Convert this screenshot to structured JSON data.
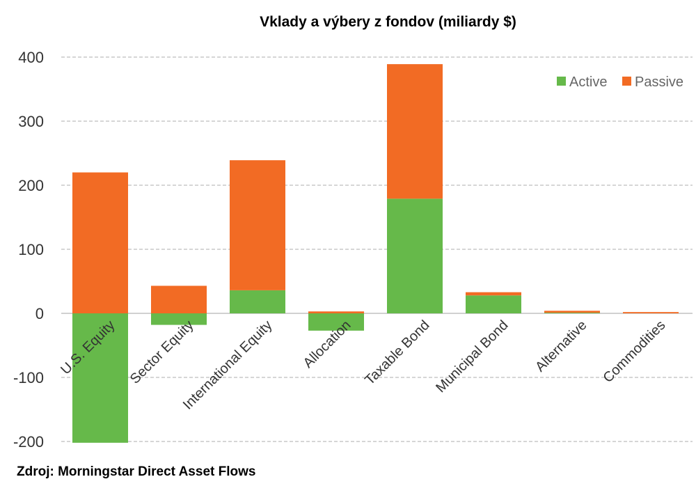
{
  "chart_data": {
    "type": "bar",
    "stacked": true,
    "title": "Vklady a výbery z fondov (miliardy $)",
    "source": "Zdroj: Morningstar Direct Asset Flows",
    "categories": [
      "U.S. Equity",
      "Sector Equity",
      "International Equity",
      "Allocation",
      "Taxable Bond",
      "Municipal Bond",
      "Alternative",
      "Commodities"
    ],
    "series": [
      {
        "name": "Active",
        "color": "#66b94a",
        "values": [
          -202,
          -18,
          36,
          -27,
          179,
          28,
          1,
          0
        ]
      },
      {
        "name": "Passive",
        "color": "#f26b24",
        "values": [
          220,
          43,
          203,
          3,
          210,
          5,
          3,
          2
        ]
      }
    ],
    "ylim": [
      -200,
      400
    ],
    "yticks": [
      -200,
      -100,
      0,
      100,
      200,
      300,
      400
    ],
    "grid": true,
    "legend": "top-right",
    "xlabel": "",
    "ylabel": ""
  }
}
